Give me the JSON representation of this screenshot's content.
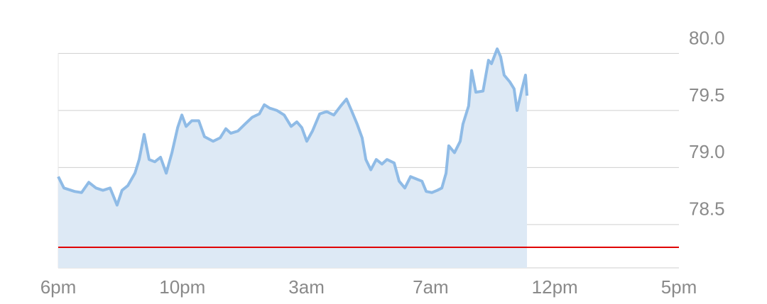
{
  "chart_data": {
    "type": "line",
    "x": [
      0,
      0.23,
      0.66,
      0.94,
      1.23,
      1.52,
      1.8,
      2.09,
      2.37,
      2.57,
      2.8,
      3.09,
      3.26,
      3.46,
      3.66,
      3.89,
      4.12,
      4.35,
      4.58,
      4.81,
      4.98,
      5.15,
      5.38,
      5.66,
      5.89,
      6.24,
      6.52,
      6.75,
      6.95,
      7.24,
      7.52,
      7.81,
      8.1,
      8.3,
      8.52,
      8.81,
      9.1,
      9.38,
      9.61,
      9.81,
      10.01,
      10.24,
      10.53,
      10.81,
      11.1,
      11.38,
      11.61,
      11.81,
      12.04,
      12.24,
      12.39,
      12.59,
      12.81,
      13.04,
      13.24,
      13.53,
      13.73,
      13.96,
      14.19,
      14.42,
      14.65,
      14.82,
      15.05,
      15.27,
      15.45,
      15.62,
      15.73,
      15.96,
      16.19,
      16.3,
      16.53,
      16.65,
      16.82,
      17.11,
      17.33,
      17.45,
      17.68,
      17.82,
      17.96,
      18.19,
      18.36,
      18.48,
      18.68,
      18.82,
      18.88
    ],
    "series": [
      {
        "color": "#8fbbe6",
        "fill": "#dde9f5",
        "values": [
          78.92,
          78.82,
          78.79,
          78.78,
          78.87,
          78.82,
          78.8,
          78.82,
          78.67,
          78.8,
          78.84,
          78.95,
          79.07,
          79.29,
          79.07,
          79.05,
          79.09,
          78.95,
          79.13,
          79.35,
          79.46,
          79.36,
          79.41,
          79.41,
          79.27,
          79.23,
          79.26,
          79.34,
          79.3,
          79.32,
          79.38,
          79.44,
          79.47,
          79.55,
          79.52,
          79.5,
          79.46,
          79.36,
          79.4,
          79.35,
          79.23,
          79.32,
          79.47,
          79.49,
          79.46,
          79.54,
          79.6,
          79.5,
          79.38,
          79.26,
          79.07,
          78.98,
          79.07,
          79.03,
          79.07,
          79.04,
          78.88,
          78.82,
          78.92,
          78.9,
          78.88,
          78.79,
          78.78,
          78.8,
          78.82,
          78.95,
          79.19,
          79.13,
          79.23,
          79.38,
          79.54,
          79.85,
          79.66,
          79.67,
          79.94,
          79.91,
          80.04,
          79.97,
          79.81,
          79.75,
          79.69,
          79.5,
          79.69,
          79.81,
          79.63
        ]
      }
    ],
    "reference_line": {
      "value": 78.3,
      "color": "#e00000"
    },
    "xlim": [
      0,
      25
    ],
    "xticks": [
      {
        "value": 0,
        "label": "6pm"
      },
      {
        "value": 5,
        "label": "10pm"
      },
      {
        "value": 10,
        "label": "3am"
      },
      {
        "value": 15,
        "label": "7am"
      },
      {
        "value": 20,
        "label": "12pm"
      },
      {
        "value": 25,
        "label": "5pm"
      }
    ],
    "ylim": [
      78.12,
      80.22
    ],
    "yticks": [
      {
        "value": 78.5,
        "label": "78.5"
      },
      {
        "value": 79,
        "label": "79.0"
      },
      {
        "value": 79.5,
        "label": "79.5"
      },
      {
        "value": 80,
        "label": "80.0"
      }
    ],
    "grid": true
  }
}
